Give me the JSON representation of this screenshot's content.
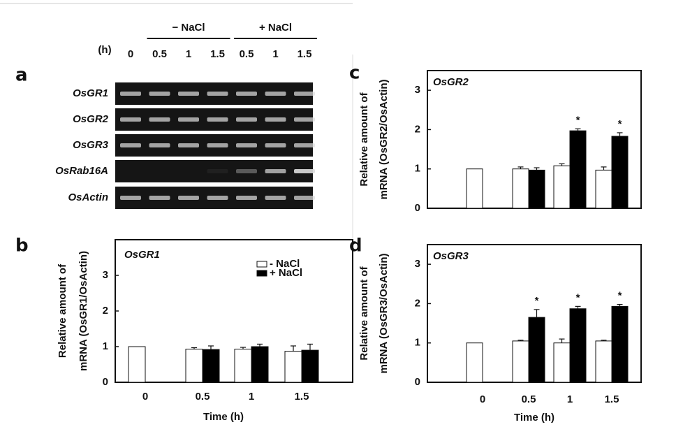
{
  "gel": {
    "panel_label": "a",
    "unit_label": "(h)",
    "groups": [
      "− NaCl",
      "+ NaCl"
    ],
    "lanes": [
      "0",
      "0.5",
      "1",
      "1.5",
      "0.5",
      "1",
      "1.5"
    ],
    "genes": [
      "OsGR1",
      "OsGR2",
      "OsGR3",
      "OsRab16A",
      "OsActin"
    ]
  },
  "chart_data": [
    {
      "type": "bar",
      "panel_label": "b",
      "title": "OsGR1",
      "ylabel": [
        "Relative amount of",
        "mRNA (OsGR1/OsActin)"
      ],
      "xlabel": "Time (h)",
      "categories": [
        "0",
        "0.5",
        "1",
        "1.5"
      ],
      "series": [
        {
          "name": "- NaCl",
          "color": "#ffffff",
          "values": [
            1,
            0.93,
            0.93,
            0.87
          ],
          "errors": [
            null,
            0.04,
            0.05,
            0.15
          ]
        },
        {
          "name": "+ NaCl",
          "color": "#000000",
          "values": [
            null,
            0.92,
            1.0,
            0.9
          ],
          "errors": [
            null,
            0.1,
            0.07,
            0.17
          ]
        }
      ],
      "ylim": [
        0,
        4
      ],
      "yticks": [
        0,
        1,
        2,
        3
      ],
      "legend": "top-right"
    },
    {
      "type": "bar",
      "panel_label": "c",
      "title": "OsGR2",
      "ylabel": [
        "Relative amount of",
        "mRNA (OsGR2/OsActin)"
      ],
      "categories": [
        null,
        null,
        null,
        null
      ],
      "series": [
        {
          "name": "- NaCl",
          "color": "#ffffff",
          "values": [
            1,
            1.0,
            1.08,
            0.97
          ],
          "errors": [
            null,
            0.05,
            0.05,
            0.08
          ]
        },
        {
          "name": "+ NaCl",
          "color": "#000000",
          "values": [
            null,
            0.97,
            1.97,
            1.83
          ],
          "errors": [
            null,
            0.06,
            0.05,
            0.09
          ],
          "annotations": [
            null,
            null,
            "*",
            "*"
          ]
        }
      ],
      "ylim": [
        0,
        3.5
      ],
      "yticks": [
        0,
        1,
        2,
        3
      ]
    },
    {
      "type": "bar",
      "panel_label": "d",
      "title": "OsGR3",
      "ylabel": [
        "Relative amount of",
        "mRNA (OsGR3/OsActin)"
      ],
      "xlabel": "Time (h)",
      "categories": [
        "0",
        "0.5",
        "1",
        "1.5"
      ],
      "series": [
        {
          "name": "- NaCl",
          "color": "#ffffff",
          "values": [
            1,
            1.05,
            1.0,
            1.05
          ],
          "errors": [
            null,
            0.02,
            0.1,
            0.02
          ]
        },
        {
          "name": "+ NaCl",
          "color": "#000000",
          "values": [
            null,
            1.65,
            1.87,
            1.93
          ],
          "errors": [
            null,
            0.2,
            0.06,
            0.05
          ],
          "annotations": [
            null,
            "*",
            "*",
            "*"
          ]
        }
      ],
      "ylim": [
        0,
        3.5
      ],
      "yticks": [
        0,
        1,
        2,
        3
      ]
    }
  ]
}
